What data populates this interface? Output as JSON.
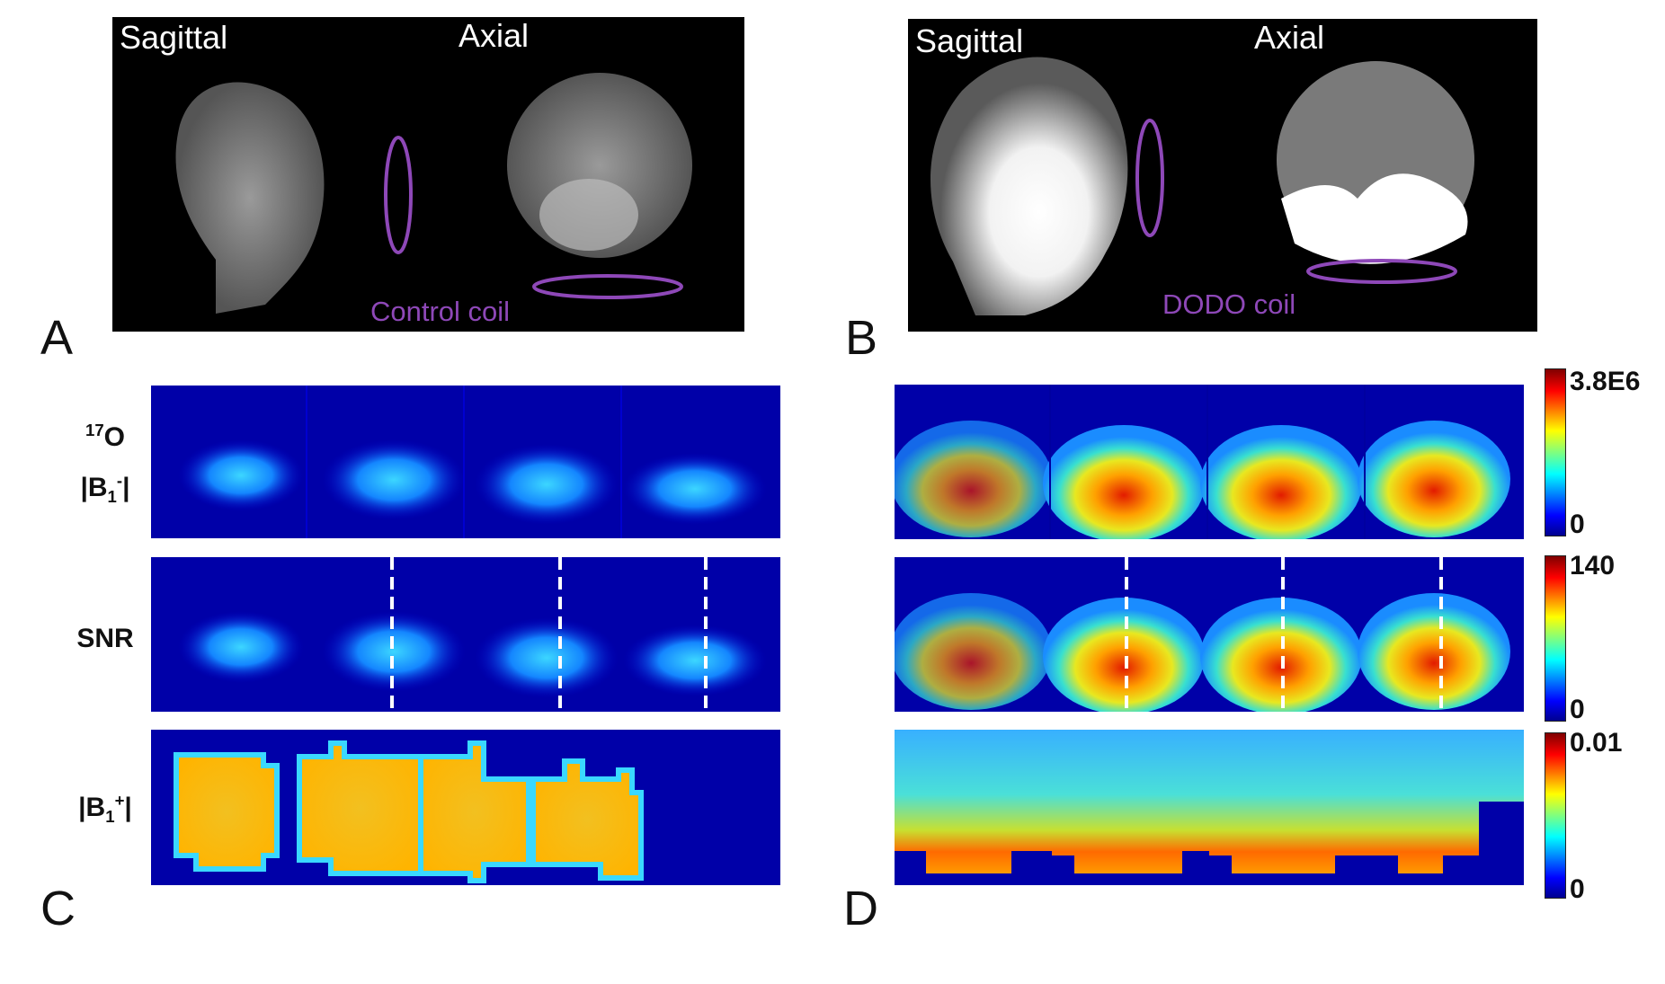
{
  "panels": {
    "a": {
      "letter": "A",
      "sagittal": "Sagittal",
      "axial": "Axial",
      "coil": "Control coil"
    },
    "b": {
      "letter": "B",
      "sagittal": "Sagittal",
      "axial": "Axial",
      "coil": "DODO coil"
    },
    "c": {
      "letter": "C"
    },
    "d": {
      "letter": "D"
    }
  },
  "rows": {
    "r1": {
      "sup": "17",
      "main": "O",
      "b1": "|B",
      "sub": "1",
      "sign": "-",
      "end": "|"
    },
    "r2": {
      "label": "SNR"
    },
    "r3": {
      "b1": "|B",
      "sub": "1",
      "sign": "+",
      "end": "|"
    }
  },
  "colorbars": {
    "r1": {
      "max": "3.8E6",
      "min": "0"
    },
    "r2": {
      "max": "140",
      "min": "0"
    },
    "r3": {
      "max": "0.01",
      "min": "0"
    }
  },
  "colors": {
    "coil_outline": "#8e48b8",
    "background_map": "#0000a8"
  }
}
